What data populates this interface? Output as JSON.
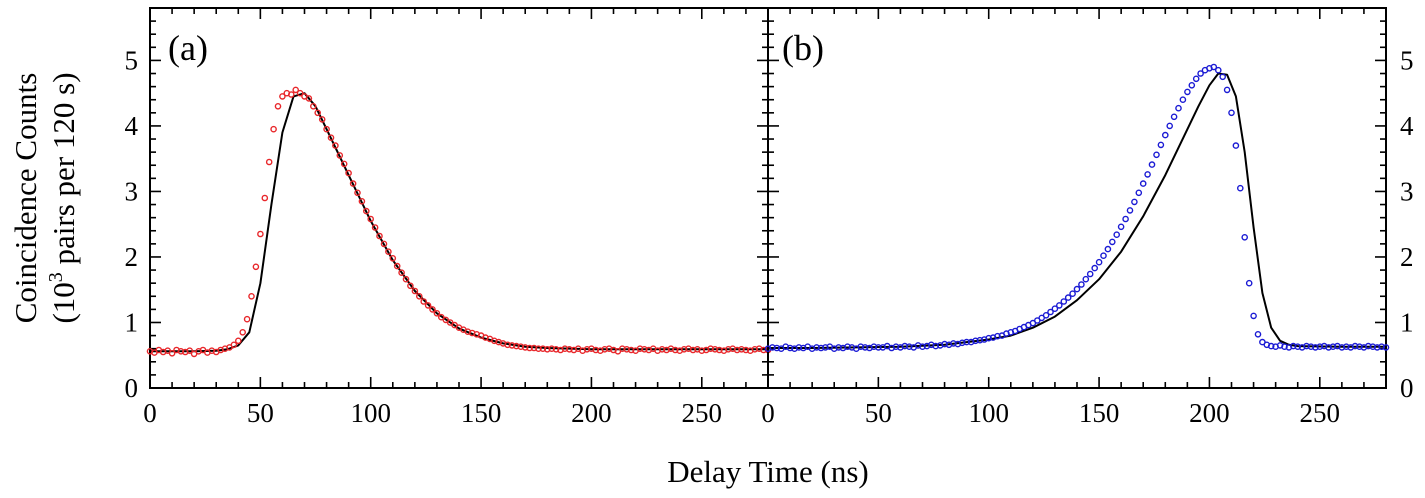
{
  "chart_data": {
    "xlabel": "Delay Time (ns)",
    "ylabel_line1": "Coincidence Counts",
    "ylabel_line2_prefix": "(10",
    "ylabel_line2_sup": "3",
    "ylabel_line2_suffix": " pairs per 120 s)",
    "xlim": [
      0,
      280
    ],
    "ylim": [
      0,
      5.8
    ],
    "x_ticks": [
      0,
      50,
      100,
      150,
      200,
      250
    ],
    "y_ticks": [
      0,
      1,
      2,
      3,
      4,
      5
    ],
    "panels": [
      {
        "label": "(a)",
        "type": "scatter",
        "marker_color": "#e8262a",
        "fit_color": "#000000",
        "series": [
          {
            "kind": "data",
            "x": [
              0,
              2,
              4,
              6,
              8,
              10,
              12,
              14,
              16,
              18,
              20,
              22,
              24,
              26,
              28,
              30,
              32,
              34,
              36,
              38,
              40,
              42,
              44,
              46,
              48,
              50,
              52,
              54,
              56,
              58,
              60,
              62,
              64,
              66,
              68,
              70,
              72,
              74,
              76,
              78,
              80,
              82,
              84,
              86,
              88,
              90,
              92,
              94,
              96,
              98,
              100,
              102,
              104,
              106,
              108,
              110,
              112,
              114,
              116,
              118,
              120,
              122,
              124,
              126,
              128,
              130,
              132,
              134,
              136,
              138,
              140,
              142,
              144,
              146,
              148,
              150,
              152,
              154,
              156,
              158,
              160,
              162,
              164,
              166,
              168,
              170,
              172,
              174,
              176,
              178,
              180,
              182,
              184,
              186,
              188,
              190,
              192,
              194,
              196,
              198,
              200,
              202,
              204,
              206,
              208,
              210,
              212,
              214,
              216,
              218,
              220,
              222,
              224,
              226,
              228,
              230,
              232,
              234,
              236,
              238,
              240,
              242,
              244,
              246,
              248,
              250,
              252,
              254,
              256,
              258,
              260,
              262,
              264,
              266,
              268,
              270,
              272,
              274,
              276,
              278,
              280
            ],
            "y": [
              0.56,
              0.54,
              0.58,
              0.55,
              0.57,
              0.53,
              0.58,
              0.56,
              0.55,
              0.57,
              0.52,
              0.56,
              0.58,
              0.54,
              0.57,
              0.55,
              0.58,
              0.6,
              0.62,
              0.66,
              0.72,
              0.85,
              1.05,
              1.4,
              1.85,
              2.35,
              2.9,
              3.45,
              3.95,
              4.3,
              4.45,
              4.5,
              4.48,
              4.55,
              4.5,
              4.45,
              4.42,
              4.3,
              4.2,
              4.1,
              3.95,
              3.82,
              3.7,
              3.55,
              3.42,
              3.28,
              3.12,
              2.98,
              2.85,
              2.7,
              2.58,
              2.45,
              2.32,
              2.2,
              2.08,
              1.98,
              1.86,
              1.76,
              1.66,
              1.56,
              1.48,
              1.4,
              1.32,
              1.26,
              1.2,
              1.14,
              1.08,
              1.04,
              1.0,
              0.96,
              0.92,
              0.89,
              0.86,
              0.84,
              0.82,
              0.8,
              0.77,
              0.75,
              0.72,
              0.7,
              0.68,
              0.66,
              0.65,
              0.64,
              0.63,
              0.62,
              0.61,
              0.61,
              0.6,
              0.6,
              0.59,
              0.6,
              0.59,
              0.58,
              0.6,
              0.59,
              0.58,
              0.6,
              0.57,
              0.59,
              0.6,
              0.58,
              0.57,
              0.59,
              0.6,
              0.58,
              0.56,
              0.6,
              0.59,
              0.58,
              0.57,
              0.6,
              0.59,
              0.58,
              0.6,
              0.57,
              0.59,
              0.58,
              0.6,
              0.58,
              0.57,
              0.59,
              0.6,
              0.58,
              0.59,
              0.57,
              0.58,
              0.6,
              0.59,
              0.58,
              0.57,
              0.59,
              0.6,
              0.58,
              0.59,
              0.58,
              0.57,
              0.59,
              0.6,
              0.58,
              0.58
            ]
          },
          {
            "kind": "fit",
            "x": [
              0,
              10,
              20,
              30,
              35,
              40,
              45,
              50,
              55,
              60,
              65,
              70,
              75,
              80,
              85,
              90,
              95,
              100,
              110,
              120,
              130,
              140,
              150,
              160,
              170,
              180,
              200,
              220,
              240,
              260,
              280
            ],
            "y": [
              0.56,
              0.56,
              0.56,
              0.57,
              0.59,
              0.65,
              0.85,
              1.6,
              2.8,
              3.9,
              4.45,
              4.5,
              4.3,
              3.95,
              3.6,
              3.25,
              2.9,
              2.55,
              1.95,
              1.48,
              1.14,
              0.91,
              0.77,
              0.68,
              0.63,
              0.61,
              0.59,
              0.59,
              0.59,
              0.59,
              0.59
            ]
          }
        ]
      },
      {
        "label": "(b)",
        "type": "scatter",
        "marker_color": "#1a1ad4",
        "fit_color": "#000000",
        "series": [
          {
            "kind": "data",
            "x": [
              0,
              2,
              4,
              6,
              8,
              10,
              12,
              14,
              16,
              18,
              20,
              22,
              24,
              26,
              28,
              30,
              32,
              34,
              36,
              38,
              40,
              42,
              44,
              46,
              48,
              50,
              52,
              54,
              56,
              58,
              60,
              62,
              64,
              66,
              68,
              70,
              72,
              74,
              76,
              78,
              80,
              82,
              84,
              86,
              88,
              90,
              92,
              94,
              96,
              98,
              100,
              102,
              104,
              106,
              108,
              110,
              112,
              114,
              116,
              118,
              120,
              122,
              124,
              126,
              128,
              130,
              132,
              134,
              136,
              138,
              140,
              142,
              144,
              146,
              148,
              150,
              152,
              154,
              156,
              158,
              160,
              162,
              164,
              166,
              168,
              170,
              172,
              174,
              176,
              178,
              180,
              182,
              184,
              186,
              188,
              190,
              192,
              194,
              196,
              198,
              200,
              202,
              204,
              206,
              208,
              210,
              212,
              214,
              216,
              218,
              220,
              222,
              224,
              226,
              228,
              230,
              232,
              234,
              236,
              238,
              240,
              242,
              244,
              246,
              248,
              250,
              252,
              254,
              256,
              258,
              260,
              262,
              264,
              266,
              268,
              270,
              272,
              274,
              276,
              278,
              280
            ],
            "y": [
              0.6,
              0.62,
              0.61,
              0.6,
              0.63,
              0.61,
              0.6,
              0.62,
              0.61,
              0.63,
              0.6,
              0.62,
              0.61,
              0.62,
              0.63,
              0.6,
              0.62,
              0.61,
              0.63,
              0.62,
              0.6,
              0.63,
              0.62,
              0.61,
              0.63,
              0.62,
              0.62,
              0.64,
              0.61,
              0.63,
              0.62,
              0.64,
              0.63,
              0.62,
              0.65,
              0.63,
              0.64,
              0.66,
              0.64,
              0.65,
              0.67,
              0.66,
              0.68,
              0.67,
              0.69,
              0.7,
              0.7,
              0.72,
              0.73,
              0.74,
              0.76,
              0.77,
              0.79,
              0.8,
              0.83,
              0.85,
              0.87,
              0.9,
              0.93,
              0.96,
              0.99,
              1.03,
              1.07,
              1.11,
              1.16,
              1.21,
              1.26,
              1.32,
              1.38,
              1.44,
              1.51,
              1.58,
              1.66,
              1.74,
              1.83,
              1.92,
              2.02,
              2.12,
              2.23,
              2.34,
              2.46,
              2.58,
              2.71,
              2.84,
              2.98,
              3.12,
              3.26,
              3.41,
              3.56,
              3.71,
              3.86,
              4.0,
              4.14,
              4.27,
              4.4,
              4.52,
              4.62,
              4.72,
              4.8,
              4.85,
              4.88,
              4.9,
              4.85,
              4.75,
              4.55,
              4.2,
              3.7,
              3.05,
              2.3,
              1.6,
              1.1,
              0.82,
              0.7,
              0.66,
              0.64,
              0.63,
              0.65,
              0.63,
              0.62,
              0.64,
              0.63,
              0.62,
              0.64,
              0.63,
              0.62,
              0.63,
              0.64,
              0.62,
              0.63,
              0.64,
              0.62,
              0.63,
              0.62,
              0.64,
              0.63,
              0.62,
              0.64,
              0.63,
              0.62,
              0.63,
              0.62
            ]
          },
          {
            "kind": "fit",
            "x": [
              0,
              20,
              40,
              60,
              80,
              100,
              110,
              120,
              130,
              140,
              150,
              160,
              170,
              180,
              190,
              195,
              200,
              204,
              208,
              212,
              216,
              220,
              224,
              228,
              232,
              236,
              240,
              260,
              280
            ],
            "y": [
              0.61,
              0.61,
              0.62,
              0.63,
              0.66,
              0.74,
              0.8,
              0.92,
              1.09,
              1.34,
              1.66,
              2.08,
              2.62,
              3.25,
              3.95,
              4.3,
              4.62,
              4.8,
              4.78,
              4.45,
              3.6,
              2.45,
              1.45,
              0.92,
              0.72,
              0.66,
              0.64,
              0.63,
              0.63
            ]
          }
        ]
      }
    ]
  }
}
